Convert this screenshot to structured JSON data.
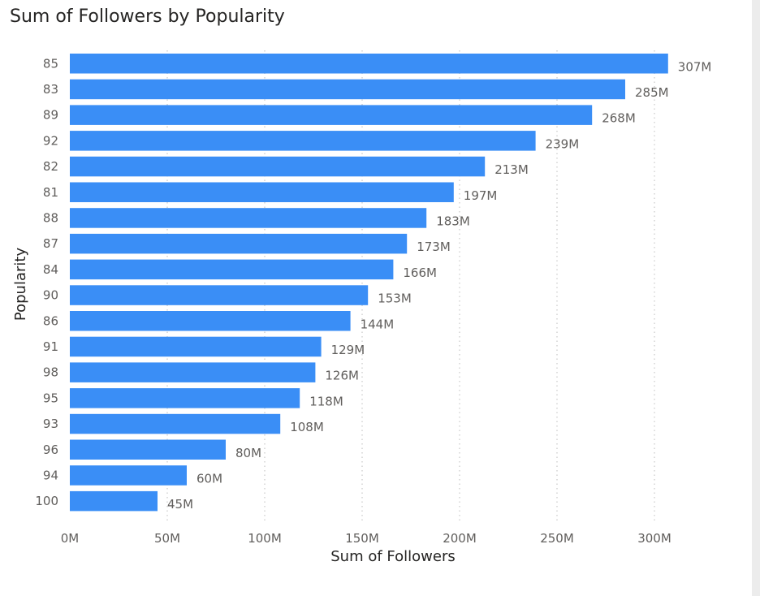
{
  "title": "Sum of Followers by Popularity",
  "colors": {
    "bar": "#3a8ef6",
    "gridline": "#c8c8c8",
    "text": "#605e5c",
    "title": "#252423"
  },
  "chart_data": {
    "type": "bar",
    "orientation": "horizontal",
    "title": "Sum of Followers by Popularity",
    "xlabel": "Sum of Followers",
    "ylabel": "Popularity",
    "categories": [
      "85",
      "83",
      "89",
      "92",
      "82",
      "81",
      "88",
      "87",
      "84",
      "90",
      "86",
      "91",
      "98",
      "95",
      "93",
      "96",
      "94",
      "100"
    ],
    "values": [
      307,
      285,
      268,
      239,
      213,
      197,
      183,
      173,
      166,
      153,
      144,
      129,
      126,
      118,
      108,
      80,
      60,
      45
    ],
    "value_unit": "M",
    "data_labels": [
      "307M",
      "285M",
      "268M",
      "239M",
      "213M",
      "197M",
      "183M",
      "173M",
      "166M",
      "153M",
      "144M",
      "129M",
      "126M",
      "118M",
      "108M",
      "80M",
      "60M",
      "45M"
    ],
    "xticks": [
      0,
      50,
      100,
      150,
      200,
      250,
      300
    ],
    "xtick_labels": [
      "0M",
      "50M",
      "100M",
      "150M",
      "200M",
      "250M",
      "300M"
    ],
    "xlim": [
      0,
      310
    ],
    "grid": "vertical-dotted",
    "legend": "none"
  }
}
